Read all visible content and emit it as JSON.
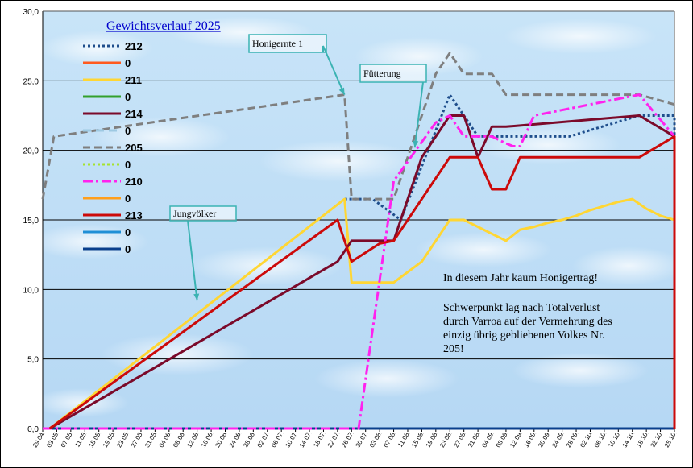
{
  "chart_data": {
    "type": "line",
    "title": "Gewichtsverlauf 2025",
    "xlabel": "",
    "ylabel": "",
    "ylim": [
      0,
      30
    ],
    "yticks": [
      "0,0",
      "5,0",
      "10,0",
      "15,0",
      "20,0",
      "25,0",
      "30,0"
    ],
    "grid": true,
    "categories": [
      "29.04.",
      "03.05.",
      "07.05.",
      "11.05.",
      "15.05.",
      "19.05.",
      "23.05.",
      "27.05.",
      "31.05.",
      "04.06.",
      "08.06.",
      "12.06.",
      "16.06.",
      "20.06.",
      "24.06.",
      "28.06.",
      "02.07.",
      "06.07.",
      "10.07.",
      "14.07.",
      "18.07.",
      "22.07.",
      "26.07.",
      "30.07.",
      "03.08.",
      "07.08.",
      "11.08.",
      "15.08.",
      "19.08.",
      "23.08.",
      "27.08.",
      "31.08.",
      "04.09.",
      "08.09.",
      "12.09.",
      "16.09.",
      "20.09.",
      "24.09.",
      "28.09.",
      "02.10.",
      "06.10.",
      "10.10.",
      "14.10.",
      "18.10.",
      "22.10.",
      "25.10."
    ],
    "series": [
      {
        "name": "212",
        "color": "#1f4e8c",
        "dash": "dot",
        "x": [
          21.5,
          23.5,
          25.5,
          29,
          31,
          33.5,
          37.5,
          42.5,
          45,
          45
        ],
        "values": [
          16.5,
          16.5,
          15,
          24,
          21,
          21,
          21,
          22.5,
          22.5,
          0
        ]
      },
      {
        "name": "0",
        "color": "#ff5a1f",
        "dash": "solid",
        "x": [
          0,
          45
        ],
        "values": [
          0,
          0
        ]
      },
      {
        "name": "211",
        "color": "#ffd633",
        "dash": "solid",
        "x": [
          0.5,
          21.5,
          22,
          24,
          25,
          27,
          28,
          29,
          30,
          31,
          32,
          33,
          34,
          35,
          36,
          37,
          38,
          39,
          40,
          41,
          42,
          43,
          44,
          45,
          45
        ],
        "values": [
          0,
          16.5,
          10.5,
          10.5,
          10.5,
          12,
          13.5,
          15,
          15,
          14.5,
          14,
          13.5,
          14.3,
          14.5,
          14.8,
          15,
          15.3,
          15.7,
          16,
          16.3,
          16.5,
          15.8,
          15.3,
          15,
          0
        ]
      },
      {
        "name": "0",
        "color": "#33a02c",
        "dash": "solid",
        "x": [
          0,
          45
        ],
        "values": [
          0,
          0
        ]
      },
      {
        "name": "214",
        "color": "#7b0a2a",
        "dash": "solid",
        "x": [
          0.5,
          21,
          22,
          24,
          25,
          27,
          29,
          30,
          31,
          32,
          33,
          42.5,
          45,
          45
        ],
        "values": [
          0,
          12,
          13.5,
          13.5,
          13.5,
          19.5,
          22.5,
          22.5,
          19.5,
          21.7,
          21.7,
          22.5,
          21,
          0
        ]
      },
      {
        "name": "0",
        "color": "#9ec9e2",
        "dash": "longdash",
        "x": [
          0,
          45
        ],
        "values": [
          0,
          0
        ]
      },
      {
        "name": "205",
        "color": "#7f7f7f",
        "dash": "dash",
        "x": [
          0,
          0.8,
          21.5,
          22,
          24,
          25,
          28,
          29,
          30,
          31,
          32,
          33,
          42.5,
          45
        ],
        "values": [
          16.5,
          21,
          24,
          16.5,
          16.5,
          16.5,
          25.5,
          27,
          25.5,
          25.5,
          25.5,
          24,
          24,
          23.3
        ]
      },
      {
        "name": "0",
        "color": "#a6e22e",
        "dash": "dot",
        "x": [
          0,
          45
        ],
        "values": [
          0,
          0
        ]
      },
      {
        "name": "210",
        "color": "#ff22ee",
        "dash": "dashdot",
        "x": [
          0,
          20.5,
          22.5,
          25,
          28,
          29,
          30,
          31,
          32,
          33,
          33.5,
          34,
          35,
          42.5,
          45
        ],
        "values": [
          0,
          0,
          0,
          17.8,
          22,
          22.5,
          21,
          21,
          21,
          20.5,
          20.3,
          20.3,
          22.5,
          24,
          21
        ]
      },
      {
        "name": "0",
        "color": "#ff9f1c",
        "dash": "solid",
        "x": [
          0,
          45
        ],
        "values": [
          0,
          0
        ]
      },
      {
        "name": "213",
        "color": "#cc0a0a",
        "dash": "solid",
        "x": [
          0.5,
          21,
          22,
          24,
          25,
          27,
          28,
          29,
          30,
          31,
          32,
          33,
          34,
          35,
          42.5,
          45,
          45
        ],
        "values": [
          0,
          15,
          12,
          13.3,
          13.5,
          16.5,
          18,
          19.5,
          19.5,
          19.5,
          17.2,
          17.2,
          19.5,
          19.5,
          19.5,
          21,
          0
        ]
      },
      {
        "name": "0",
        "color": "#1f8fd6",
        "dash": "solid",
        "x": [
          0,
          45
        ],
        "values": [
          0,
          0
        ]
      },
      {
        "name": "0",
        "color": "#0a3f8c",
        "dash": "solid",
        "x": [
          0,
          45
        ],
        "values": [
          0,
          0
        ]
      }
    ],
    "annotations": [
      {
        "text": "Honigernte 1",
        "target_x": 21.5,
        "target_y": 24
      },
      {
        "text": "Fütterung",
        "target_x": 26.5,
        "target_y": 20.2
      },
      {
        "text": "Jungvölker",
        "target_x": 11,
        "target_y": 9.2
      }
    ],
    "notes": [
      "In diesem Jahr kaum Honigertrag!",
      "Schwerpunkt lag nach Totalverlust",
      "durch Varroa auf der Vermehrung des",
      "einzig übrig gebliebenen Volkes Nr.",
      "205!"
    ]
  }
}
